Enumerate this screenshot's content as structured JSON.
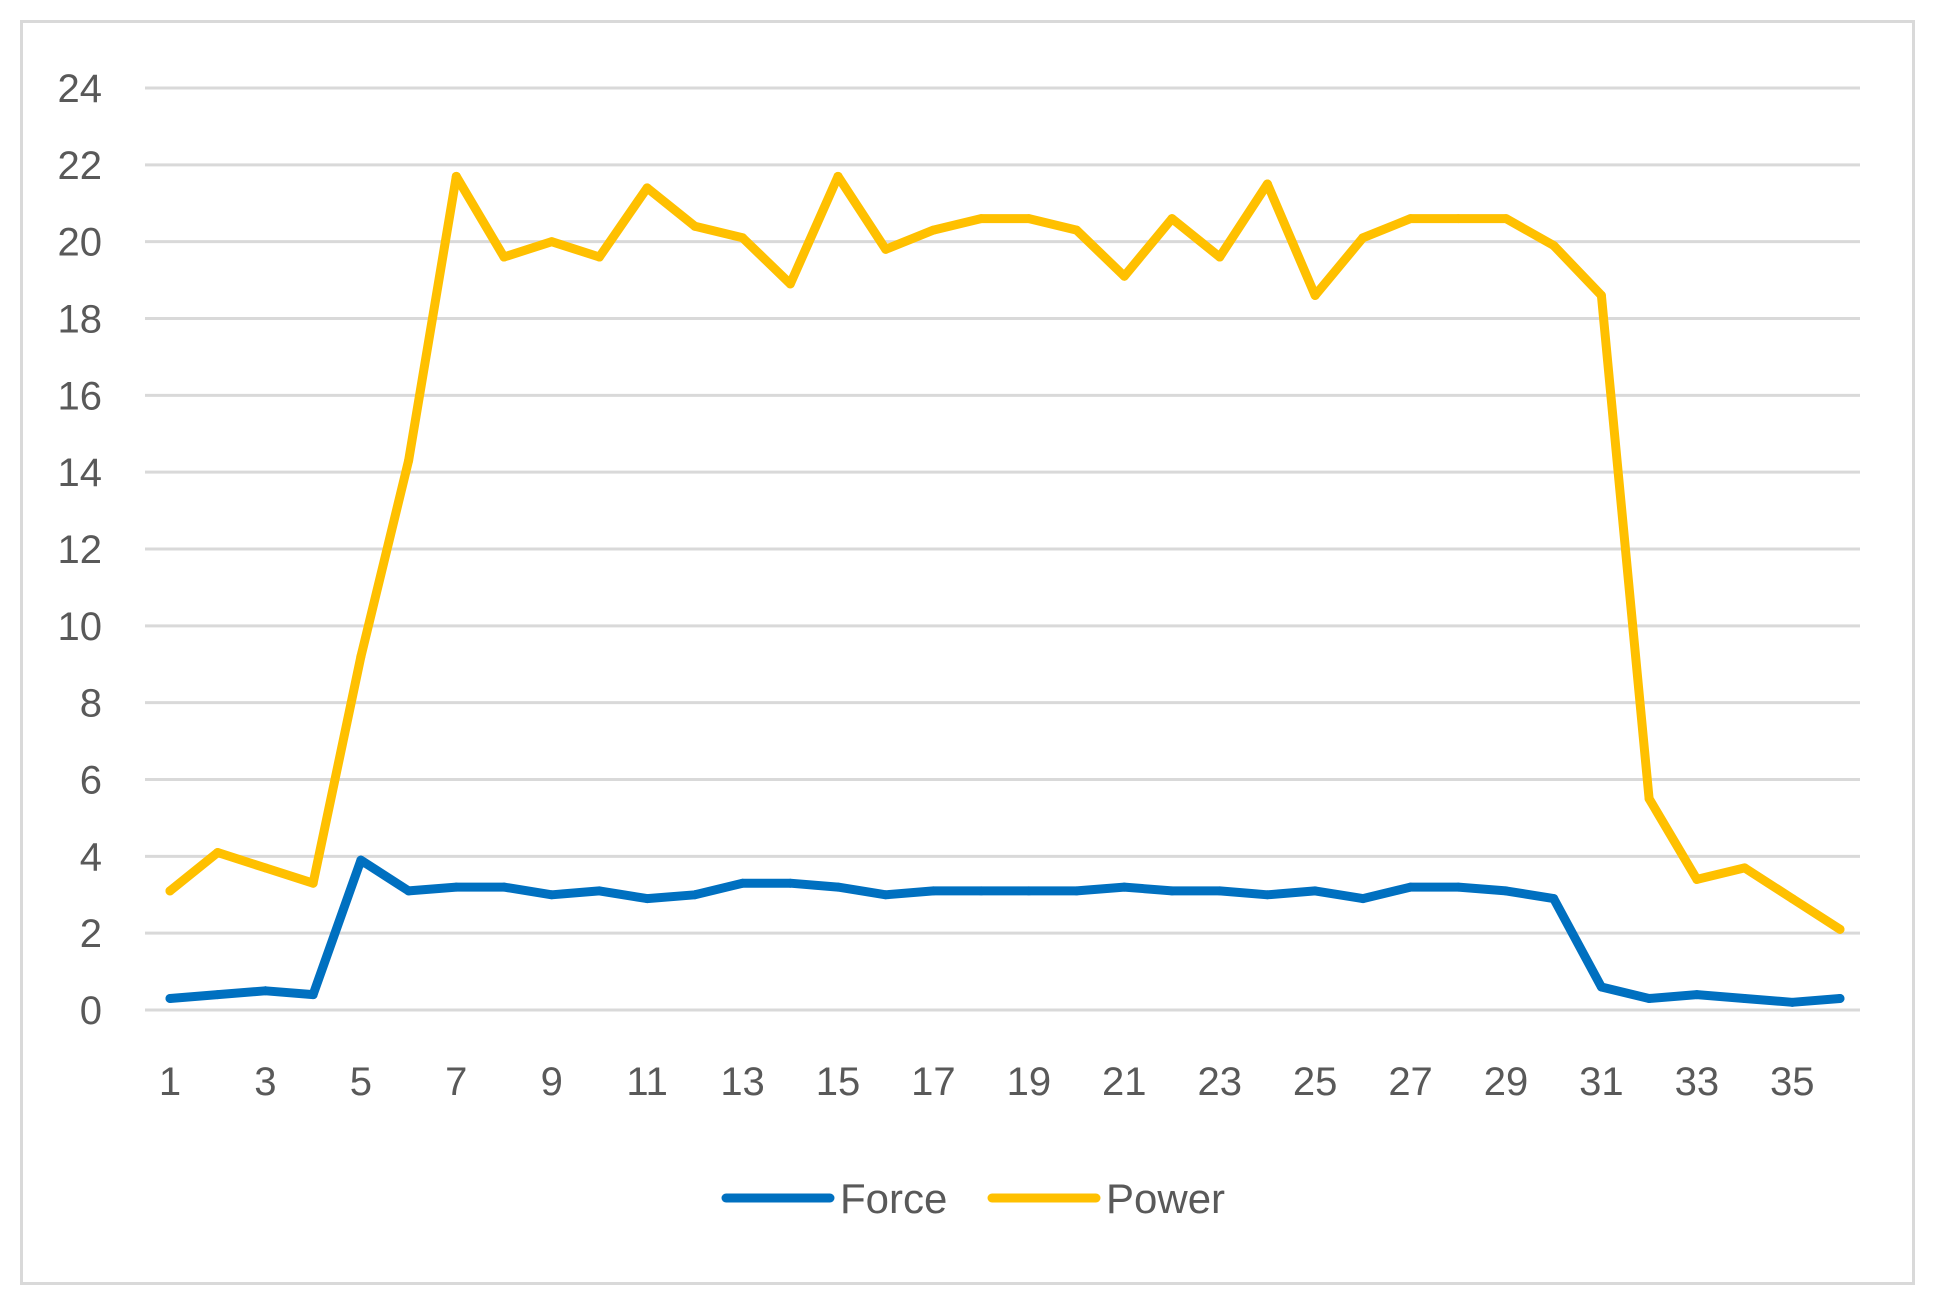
{
  "chart_data": {
    "type": "line",
    "title": "",
    "xlabel": "",
    "ylabel": "",
    "x": [
      1,
      2,
      3,
      4,
      5,
      6,
      7,
      8,
      9,
      10,
      11,
      12,
      13,
      14,
      15,
      16,
      17,
      18,
      19,
      20,
      21,
      22,
      23,
      24,
      25,
      26,
      27,
      28,
      29,
      30,
      31,
      32,
      33,
      34,
      35,
      36
    ],
    "x_tick_labels": [
      1,
      3,
      5,
      7,
      9,
      11,
      13,
      15,
      17,
      19,
      21,
      23,
      25,
      27,
      29,
      31,
      33,
      35
    ],
    "ylim": [
      0,
      24
    ],
    "y_ticks": [
      0,
      2,
      4,
      6,
      8,
      10,
      12,
      14,
      16,
      18,
      20,
      22,
      24
    ],
    "grid": true,
    "legend_position": "bottom",
    "series": [
      {
        "name": "Force",
        "color": "#0070c0",
        "values": [
          0.3,
          0.4,
          0.5,
          0.4,
          3.9,
          3.1,
          3.2,
          3.2,
          3.0,
          3.1,
          2.9,
          3.0,
          3.3,
          3.3,
          3.2,
          3.0,
          3.1,
          3.1,
          3.1,
          3.1,
          3.2,
          3.1,
          3.1,
          3.0,
          3.1,
          2.9,
          3.2,
          3.2,
          3.1,
          2.9,
          0.6,
          0.3,
          0.4,
          0.3,
          0.2,
          0.3
        ]
      },
      {
        "name": "Power",
        "color": "#ffc000",
        "values": [
          3.1,
          4.1,
          3.7,
          3.3,
          9.2,
          14.3,
          21.7,
          19.6,
          20.0,
          19.6,
          21.4,
          20.4,
          20.1,
          18.9,
          21.7,
          19.8,
          20.3,
          20.6,
          20.6,
          20.3,
          19.1,
          20.6,
          19.6,
          21.5,
          18.6,
          20.1,
          20.6,
          20.6,
          20.6,
          19.9,
          18.6,
          5.5,
          3.4,
          3.7,
          2.9,
          2.1
        ]
      }
    ]
  }
}
